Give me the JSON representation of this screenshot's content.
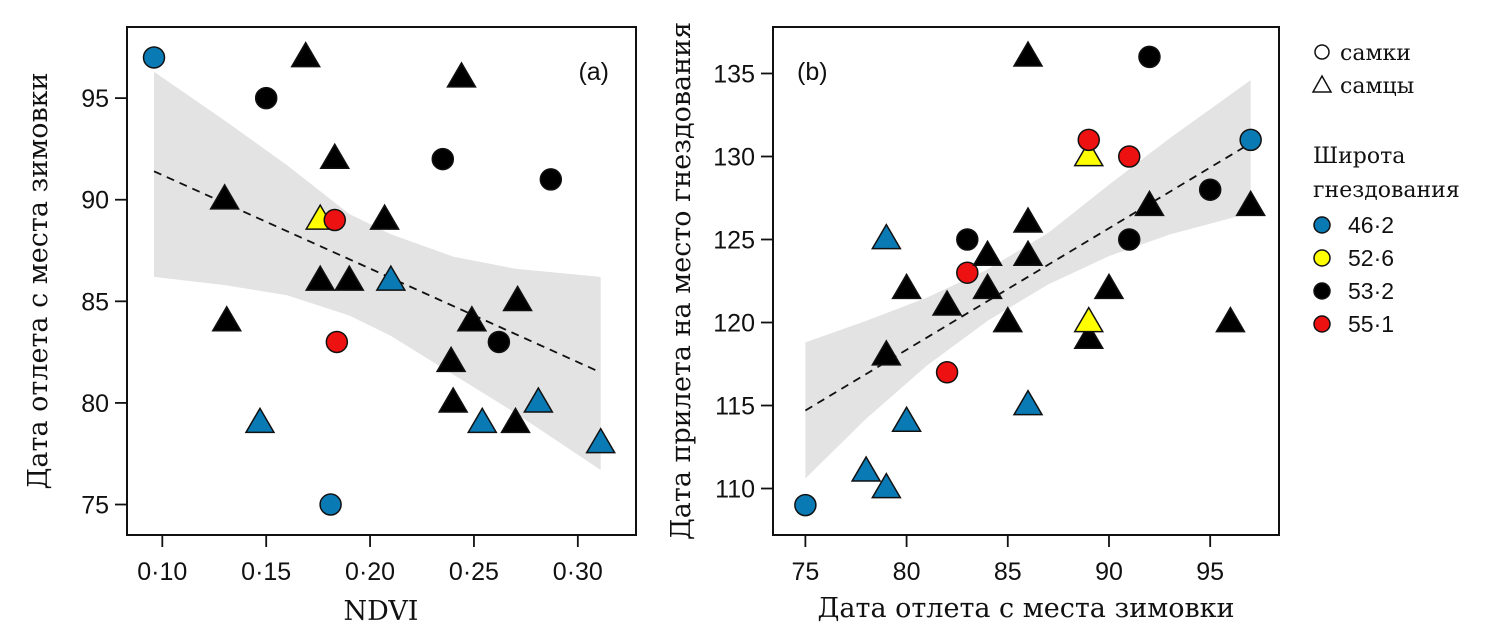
{
  "chart_data": [
    {
      "type": "scatter",
      "panel_label": "(a)",
      "xlabel": "NDVI",
      "ylabel": "Дата отлета с места зимовки",
      "xlim": [
        0.083,
        0.328
      ],
      "ylim": [
        73.5,
        98.5
      ],
      "xticks": [
        0.1,
        0.15,
        0.2,
        0.25,
        0.3
      ],
      "xtick_labels": [
        "0·10",
        "0·15",
        "0·20",
        "0·25",
        "0·30"
      ],
      "yticks": [
        75,
        80,
        85,
        90,
        95
      ],
      "ytick_labels": [
        "75",
        "80",
        "85",
        "90",
        "95"
      ],
      "grid": false,
      "regression": {
        "style": "dashed",
        "x": [
          0.096,
          0.311
        ],
        "y": [
          91.4,
          81.5
        ],
        "ci_band": {
          "x": [
            0.096,
            0.13,
            0.16,
            0.19,
            0.21,
            0.24,
            0.27,
            0.311
          ],
          "lower": [
            86.2,
            85.8,
            85.3,
            84.3,
            83.3,
            81.4,
            79.5,
            76.7
          ],
          "upper": [
            96.3,
            93.9,
            91.7,
            89.3,
            88.3,
            87.2,
            86.6,
            86.2
          ]
        }
      },
      "points": [
        {
          "x": 0.096,
          "y": 97,
          "sex": "female",
          "lat": "46·2"
        },
        {
          "x": 0.169,
          "y": 97,
          "sex": "male",
          "lat": "53·2"
        },
        {
          "x": 0.15,
          "y": 95,
          "sex": "female",
          "lat": "53·2"
        },
        {
          "x": 0.244,
          "y": 96,
          "sex": "male",
          "lat": "53·2"
        },
        {
          "x": 0.183,
          "y": 92,
          "sex": "male",
          "lat": "53·2"
        },
        {
          "x": 0.235,
          "y": 92,
          "sex": "female",
          "lat": "53·2"
        },
        {
          "x": 0.287,
          "y": 91,
          "sex": "female",
          "lat": "53·2"
        },
        {
          "x": 0.13,
          "y": 90,
          "sex": "male",
          "lat": "53·2"
        },
        {
          "x": 0.176,
          "y": 89,
          "sex": "male",
          "lat": "52·6"
        },
        {
          "x": 0.183,
          "y": 89,
          "sex": "female",
          "lat": "55·1"
        },
        {
          "x": 0.207,
          "y": 89,
          "sex": "male",
          "lat": "53·2"
        },
        {
          "x": 0.176,
          "y": 86,
          "sex": "male",
          "lat": "53·2"
        },
        {
          "x": 0.19,
          "y": 86,
          "sex": "male",
          "lat": "53·2"
        },
        {
          "x": 0.21,
          "y": 86,
          "sex": "male",
          "lat": "46·2"
        },
        {
          "x": 0.271,
          "y": 85,
          "sex": "male",
          "lat": "53·2"
        },
        {
          "x": 0.249,
          "y": 84,
          "sex": "male",
          "lat": "53·2"
        },
        {
          "x": 0.131,
          "y": 84,
          "sex": "male",
          "lat": "53·2"
        },
        {
          "x": 0.184,
          "y": 83,
          "sex": "female",
          "lat": "55·1"
        },
        {
          "x": 0.262,
          "y": 83,
          "sex": "female",
          "lat": "53·2"
        },
        {
          "x": 0.239,
          "y": 82,
          "sex": "male",
          "lat": "53·2"
        },
        {
          "x": 0.24,
          "y": 80,
          "sex": "male",
          "lat": "53·2"
        },
        {
          "x": 0.281,
          "y": 80,
          "sex": "male",
          "lat": "46·2"
        },
        {
          "x": 0.147,
          "y": 79,
          "sex": "male",
          "lat": "46·2"
        },
        {
          "x": 0.254,
          "y": 79,
          "sex": "male",
          "lat": "46·2"
        },
        {
          "x": 0.27,
          "y": 79,
          "sex": "male",
          "lat": "53·2"
        },
        {
          "x": 0.311,
          "y": 78,
          "sex": "male",
          "lat": "46·2"
        },
        {
          "x": 0.181,
          "y": 75,
          "sex": "female",
          "lat": "46·2"
        }
      ]
    },
    {
      "type": "scatter",
      "panel_label": "(b)",
      "xlabel": "Дата отлета с места зимовки",
      "ylabel": "Дата прилета на место гнездования",
      "xlim": [
        73.4,
        98.4
      ],
      "ylim": [
        107.2,
        137.8
      ],
      "xticks": [
        75,
        80,
        85,
        90,
        95
      ],
      "xtick_labels": [
        "75",
        "80",
        "85",
        "90",
        "95"
      ],
      "yticks": [
        110,
        115,
        120,
        125,
        130,
        135
      ],
      "ytick_labels": [
        "110",
        "115",
        "120",
        "125",
        "130",
        "135"
      ],
      "grid": false,
      "regression": {
        "style": "dashed",
        "x": [
          75,
          97
        ],
        "y": [
          114.7,
          130.8
        ],
        "ci_band": {
          "x": [
            75,
            78,
            81,
            84,
            87,
            90,
            93,
            97
          ],
          "lower": [
            110.6,
            114.2,
            117.4,
            120.1,
            122.3,
            124.0,
            125.3,
            126.6
          ],
          "upper": [
            118.8,
            120.1,
            121.5,
            123.2,
            125.4,
            128.3,
            131.1,
            134.6
          ]
        }
      },
      "points": [
        {
          "x": 75,
          "y": 109,
          "sex": "female",
          "lat": "46·2"
        },
        {
          "x": 78,
          "y": 111,
          "sex": "male",
          "lat": "46·2"
        },
        {
          "x": 79,
          "y": 110,
          "sex": "male",
          "lat": "46·2"
        },
        {
          "x": 80,
          "y": 114,
          "sex": "male",
          "lat": "46·2"
        },
        {
          "x": 86,
          "y": 115,
          "sex": "male",
          "lat": "46·2"
        },
        {
          "x": 82,
          "y": 117,
          "sex": "female",
          "lat": "55·1"
        },
        {
          "x": 79,
          "y": 118,
          "sex": "male",
          "lat": "53·2"
        },
        {
          "x": 82,
          "y": 121,
          "sex": "male",
          "lat": "53·2"
        },
        {
          "x": 80,
          "y": 122,
          "sex": "male",
          "lat": "53·2"
        },
        {
          "x": 84,
          "y": 122,
          "sex": "male",
          "lat": "53·2"
        },
        {
          "x": 83,
          "y": 123,
          "sex": "female",
          "lat": "55·1"
        },
        {
          "x": 83,
          "y": 125,
          "sex": "female",
          "lat": "53·2"
        },
        {
          "x": 79,
          "y": 125,
          "sex": "male",
          "lat": "46·2"
        },
        {
          "x": 84,
          "y": 124,
          "sex": "male",
          "lat": "53·2"
        },
        {
          "x": 86,
          "y": 124,
          "sex": "male",
          "lat": "53·2"
        },
        {
          "x": 86,
          "y": 126,
          "sex": "male",
          "lat": "53·2"
        },
        {
          "x": 85,
          "y": 120,
          "sex": "male",
          "lat": "53·2"
        },
        {
          "x": 89,
          "y": 119,
          "sex": "male",
          "lat": "53·2"
        },
        {
          "x": 89,
          "y": 120,
          "sex": "male",
          "lat": "52·6"
        },
        {
          "x": 90,
          "y": 122,
          "sex": "male",
          "lat": "53·2"
        },
        {
          "x": 92,
          "y": 127,
          "sex": "male",
          "lat": "53·2"
        },
        {
          "x": 91,
          "y": 125,
          "sex": "female",
          "lat": "53·2"
        },
        {
          "x": 91,
          "y": 130,
          "sex": "female",
          "lat": "55·1"
        },
        {
          "x": 89,
          "y": 130,
          "sex": "male",
          "lat": "52·6"
        },
        {
          "x": 89,
          "y": 131,
          "sex": "female",
          "lat": "55·1"
        },
        {
          "x": 92,
          "y": 136,
          "sex": "female",
          "lat": "53·2"
        },
        {
          "x": 86,
          "y": 136,
          "sex": "male",
          "lat": "53·2"
        },
        {
          "x": 95,
          "y": 128,
          "sex": "female",
          "lat": "53·2"
        },
        {
          "x": 97,
          "y": 131,
          "sex": "female",
          "lat": "46·2"
        },
        {
          "x": 97,
          "y": 127,
          "sex": "male",
          "lat": "53·2"
        },
        {
          "x": 96,
          "y": 120,
          "sex": "male",
          "lat": "53·2"
        }
      ]
    }
  ],
  "legend": {
    "placement": "right",
    "shapes": [
      {
        "symbol": "circle",
        "label": "самки"
      },
      {
        "symbol": "triangle",
        "label": "самцы"
      }
    ],
    "title_line1": "Широта",
    "title_line2": "гнездования",
    "latitudes": [
      {
        "label": "46·2",
        "color": "#0A7AB4"
      },
      {
        "label": "52·6",
        "color": "#FFFF00"
      },
      {
        "label": "53·2",
        "color": "#000000"
      },
      {
        "label": "55·1",
        "color": "#EE1111"
      }
    ]
  }
}
